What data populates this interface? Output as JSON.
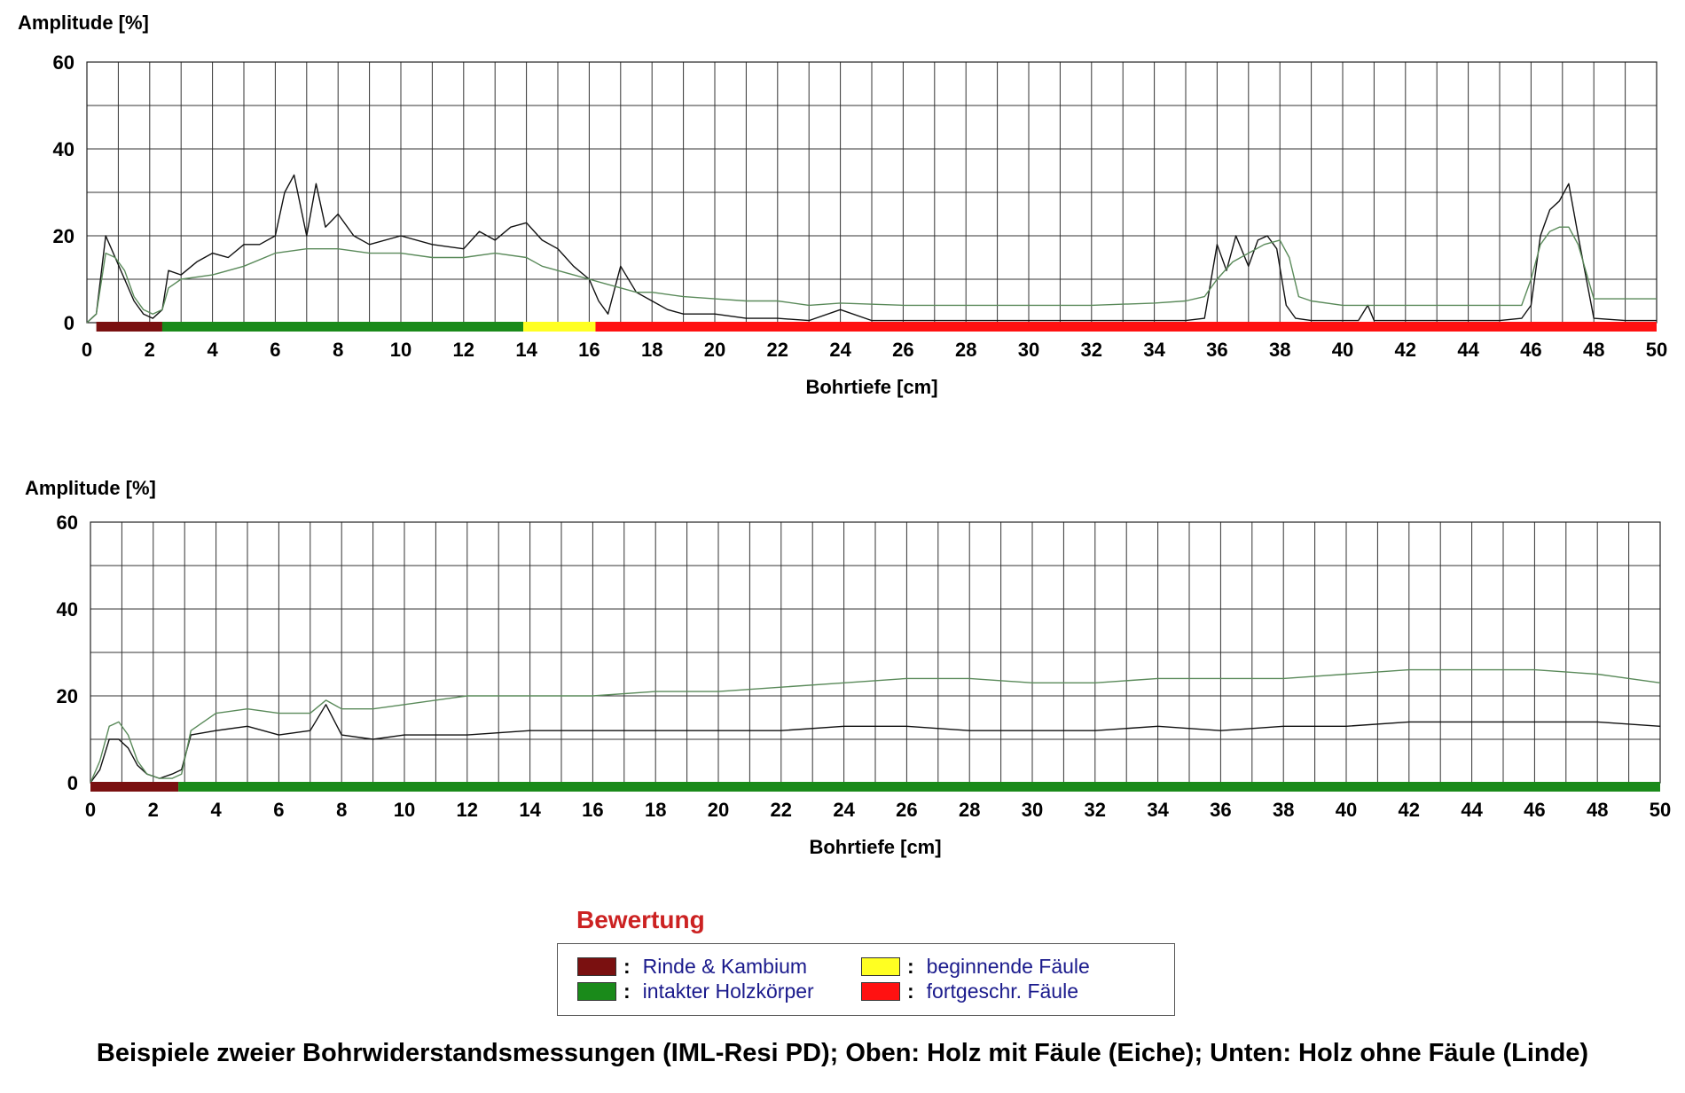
{
  "chart_data": [
    {
      "type": "line",
      "title": "",
      "ylabel": "Amplitude [%]",
      "xlabel": "Bohrtiefe [cm]",
      "xlim": [
        0,
        50
      ],
      "ylim": [
        0,
        60
      ],
      "xticks": [
        0,
        2,
        4,
        6,
        8,
        10,
        12,
        14,
        16,
        18,
        20,
        22,
        24,
        26,
        28,
        30,
        32,
        34,
        36,
        38,
        40,
        42,
        44,
        46,
        48,
        50
      ],
      "yticks": [
        0,
        20,
        40,
        60
      ],
      "grid": true,
      "series": [
        {
          "color": "#111111",
          "x": [
            0,
            0.3,
            0.6,
            0.9,
            1.2,
            1.5,
            1.8,
            2.1,
            2.4,
            2.6,
            3,
            3.5,
            4,
            4.5,
            5,
            5.5,
            6,
            6.3,
            6.6,
            7,
            7.3,
            7.6,
            8,
            8.5,
            9,
            10,
            11,
            12,
            12.5,
            13,
            13.5,
            14,
            14.5,
            15,
            15.5,
            16,
            16.3,
            16.6,
            17,
            17.5,
            18,
            18.5,
            19,
            20,
            21,
            22,
            23,
            24,
            25,
            26,
            28,
            30,
            32,
            34,
            35,
            35.6,
            36,
            36.3,
            36.6,
            37,
            37.3,
            37.6,
            37.9,
            38.2,
            38.5,
            39,
            40,
            40.5,
            40.8,
            41,
            42,
            44,
            45,
            45.7,
            46,
            46.3,
            46.6,
            46.9,
            47.2,
            47.5,
            48,
            49,
            50
          ],
          "y": [
            0,
            2,
            20,
            15,
            10,
            5,
            2,
            1,
            3,
            12,
            11,
            14,
            16,
            15,
            18,
            18,
            20,
            30,
            34,
            20,
            32,
            22,
            25,
            20,
            18,
            20,
            18,
            17,
            21,
            19,
            22,
            23,
            19,
            17,
            13,
            10,
            5,
            2,
            13,
            7,
            5,
            3,
            2,
            2,
            1,
            1,
            0.5,
            3,
            0.5,
            0.5,
            0.5,
            0.5,
            0.5,
            0.5,
            0.5,
            1,
            18,
            12,
            20,
            13,
            19,
            20,
            17,
            4,
            1,
            0.5,
            0.5,
            0.5,
            4,
            0.5,
            0.5,
            0.5,
            0.5,
            1,
            4,
            20,
            26,
            28,
            32,
            20,
            1,
            0.5,
            0.5
          ]
        },
        {
          "color": "#5a8a5a",
          "x": [
            0,
            0.3,
            0.6,
            0.9,
            1.2,
            1.5,
            1.8,
            2.1,
            2.4,
            2.6,
            3,
            4,
            5,
            6,
            7,
            8,
            9,
            10,
            11,
            12,
            13,
            14,
            14.5,
            15,
            15.5,
            16,
            16.5,
            17,
            17.5,
            18,
            19,
            20,
            21,
            22,
            23,
            24,
            26,
            28,
            30,
            32,
            34,
            35,
            35.6,
            36,
            36.5,
            37,
            37.5,
            38,
            38.3,
            38.6,
            39,
            40,
            42,
            44,
            45,
            45.7,
            46,
            46.3,
            46.6,
            46.9,
            47.2,
            47.5,
            48,
            49,
            50
          ],
          "y": [
            0,
            2,
            16,
            15,
            12,
            6,
            3,
            2,
            3,
            8,
            10,
            11,
            13,
            16,
            17,
            17,
            16,
            16,
            15,
            15,
            16,
            15,
            13,
            12,
            11,
            10,
            9,
            8,
            7,
            7,
            6,
            5.5,
            5,
            5,
            4,
            4.5,
            4,
            4,
            4,
            4,
            4.5,
            5,
            6,
            10,
            14,
            16,
            18,
            19,
            15,
            6,
            5,
            4,
            4,
            4,
            4,
            4,
            10,
            18,
            21,
            22,
            22,
            18,
            5.5,
            5.5,
            5.5
          ]
        }
      ],
      "bands": [
        {
          "from": 0.3,
          "to": 2.4,
          "color": "#7a1010",
          "label": "Rinde & Kambium"
        },
        {
          "from": 2.4,
          "to": 13.9,
          "color": "#1a8a1a",
          "label": "intakter Holzkörper"
        },
        {
          "from": 13.9,
          "to": 16.2,
          "color": "#ffff22",
          "label": "beginnende Fäule"
        },
        {
          "from": 16.2,
          "to": 50,
          "color": "#ff1111",
          "label": "fortgeschr. Fäule"
        }
      ]
    },
    {
      "type": "line",
      "title": "",
      "ylabel": "Amplitude [%]",
      "xlabel": "Bohrtiefe [cm]",
      "xlim": [
        0,
        50
      ],
      "ylim": [
        0,
        60
      ],
      "xticks": [
        0,
        2,
        4,
        6,
        8,
        10,
        12,
        14,
        16,
        18,
        20,
        22,
        24,
        26,
        28,
        30,
        32,
        34,
        36,
        38,
        40,
        42,
        44,
        46,
        48,
        50
      ],
      "yticks": [
        0,
        20,
        40,
        60
      ],
      "grid": true,
      "series": [
        {
          "color": "#111111",
          "x": [
            0,
            0.3,
            0.6,
            0.9,
            1.2,
            1.5,
            1.8,
            2.2,
            2.6,
            2.9,
            3.2,
            4,
            5,
            6,
            7,
            7.5,
            8,
            9,
            10,
            12,
            14,
            16,
            18,
            20,
            22,
            24,
            26,
            28,
            30,
            32,
            34,
            36,
            38,
            40,
            42,
            44,
            46,
            48,
            50
          ],
          "y": [
            0,
            3,
            10,
            10,
            8,
            4,
            2,
            1,
            2,
            3,
            11,
            12,
            13,
            11,
            12,
            18,
            11,
            10,
            11,
            11,
            12,
            12,
            12,
            12,
            12,
            13,
            13,
            12,
            12,
            12,
            13,
            12,
            13,
            13,
            14,
            14,
            14,
            14,
            13
          ]
        },
        {
          "color": "#5a8a5a",
          "x": [
            0,
            0.3,
            0.6,
            0.9,
            1.2,
            1.5,
            1.8,
            2.2,
            2.6,
            2.9,
            3.2,
            4,
            5,
            6,
            7,
            7.5,
            8,
            9,
            10,
            12,
            14,
            16,
            18,
            20,
            22,
            24,
            26,
            28,
            30,
            32,
            34,
            36,
            38,
            40,
            42,
            44,
            46,
            48,
            50
          ],
          "y": [
            0,
            5,
            13,
            14,
            11,
            5,
            2,
            1,
            1,
            2,
            12,
            16,
            17,
            16,
            16,
            19,
            17,
            17,
            18,
            20,
            20,
            20,
            21,
            21,
            22,
            23,
            24,
            24,
            23,
            23,
            24,
            24,
            24,
            25,
            26,
            26,
            26,
            25,
            23
          ]
        }
      ],
      "bands": [
        {
          "from": 0,
          "to": 2.8,
          "color": "#7a1010",
          "label": "Rinde & Kambium"
        },
        {
          "from": 2.8,
          "to": 50,
          "color": "#1a8a1a",
          "label": "intakter Holzkörper"
        }
      ]
    }
  ],
  "legend": {
    "title": "Bewertung",
    "sep": ":",
    "items": [
      {
        "label": "Rinde & Kambium",
        "color": "#7a1010"
      },
      {
        "label": "intakter Holzkörper",
        "color": "#1a8a1a"
      },
      {
        "label": "beginnende Fäule",
        "color": "#ffff22"
      },
      {
        "label": "fortgeschr. Fäule",
        "color": "#ff1111"
      }
    ]
  },
  "caption": "Beispiele zweier Bohrwiderstandsmessungen (IML-Resi PD); Oben: Holz mit Fäule (Eiche); Unten: Holz ohne Fäule (Linde)"
}
